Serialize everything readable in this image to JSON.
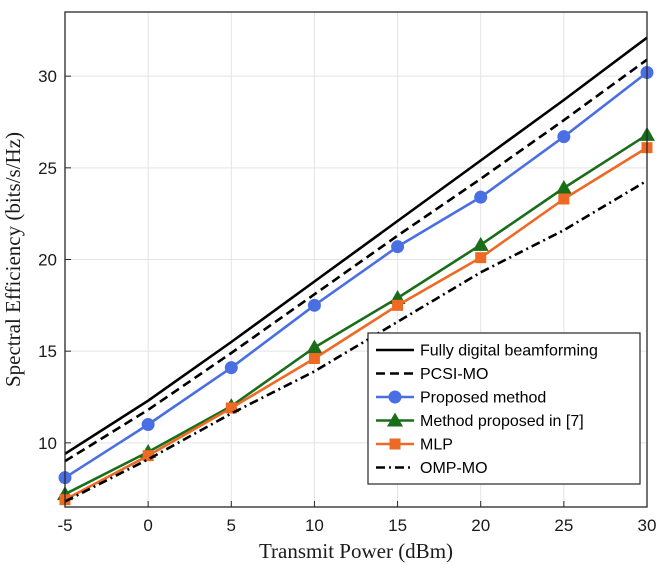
{
  "chart_data": {
    "type": "line",
    "title": "",
    "xlabel": "Transmit Power (dBm)",
    "ylabel": "Spectral Efficiency (bits/s/Hz)",
    "xlim": [
      -5,
      30
    ],
    "ylim": [
      6.5,
      33.5
    ],
    "grid": true,
    "legend_position": "bottom-right",
    "x": [
      -5,
      0,
      5,
      10,
      15,
      20,
      25,
      30
    ],
    "x_tick_labels": [
      "-5",
      "0",
      "5",
      "10",
      "15",
      "20",
      "25",
      "30"
    ],
    "y_ticks": [
      10,
      15,
      20,
      25,
      30
    ],
    "y_tick_labels": [
      "10",
      "15",
      "20",
      "25",
      "30"
    ],
    "series": [
      {
        "name": "Fully digital beamforming",
        "values": [
          9.4,
          12.3,
          15.5,
          18.8,
          22.1,
          25.4,
          28.7,
          32.1
        ],
        "color": "#000000",
        "dash": "solid",
        "marker": "none"
      },
      {
        "name": "PCSI-MO",
        "values": [
          9.0,
          11.8,
          14.9,
          18.1,
          21.3,
          24.4,
          27.6,
          30.9
        ],
        "color": "#000000",
        "dash": "dashed",
        "marker": "none"
      },
      {
        "name": "Proposed method",
        "values": [
          8.1,
          11.0,
          14.1,
          17.5,
          20.7,
          23.4,
          26.7,
          30.2
        ],
        "color": "#4a6fe3",
        "dash": "solid",
        "marker": "circle"
      },
      {
        "name": "Method proposed in [7]",
        "values": [
          7.2,
          9.5,
          12.0,
          15.2,
          17.9,
          20.8,
          23.9,
          26.8
        ],
        "color": "#1a6e1a",
        "dash": "solid",
        "marker": "triangle"
      },
      {
        "name": "MLP",
        "values": [
          6.9,
          9.3,
          11.9,
          14.6,
          17.5,
          20.1,
          23.3,
          26.1
        ],
        "color": "#ee6a24",
        "dash": "solid",
        "marker": "square"
      },
      {
        "name": "OMP-MO",
        "values": [
          6.8,
          9.1,
          11.6,
          13.9,
          16.6,
          19.3,
          21.6,
          24.3
        ],
        "color": "#000000",
        "dash": "dashdot",
        "marker": "none"
      }
    ]
  }
}
